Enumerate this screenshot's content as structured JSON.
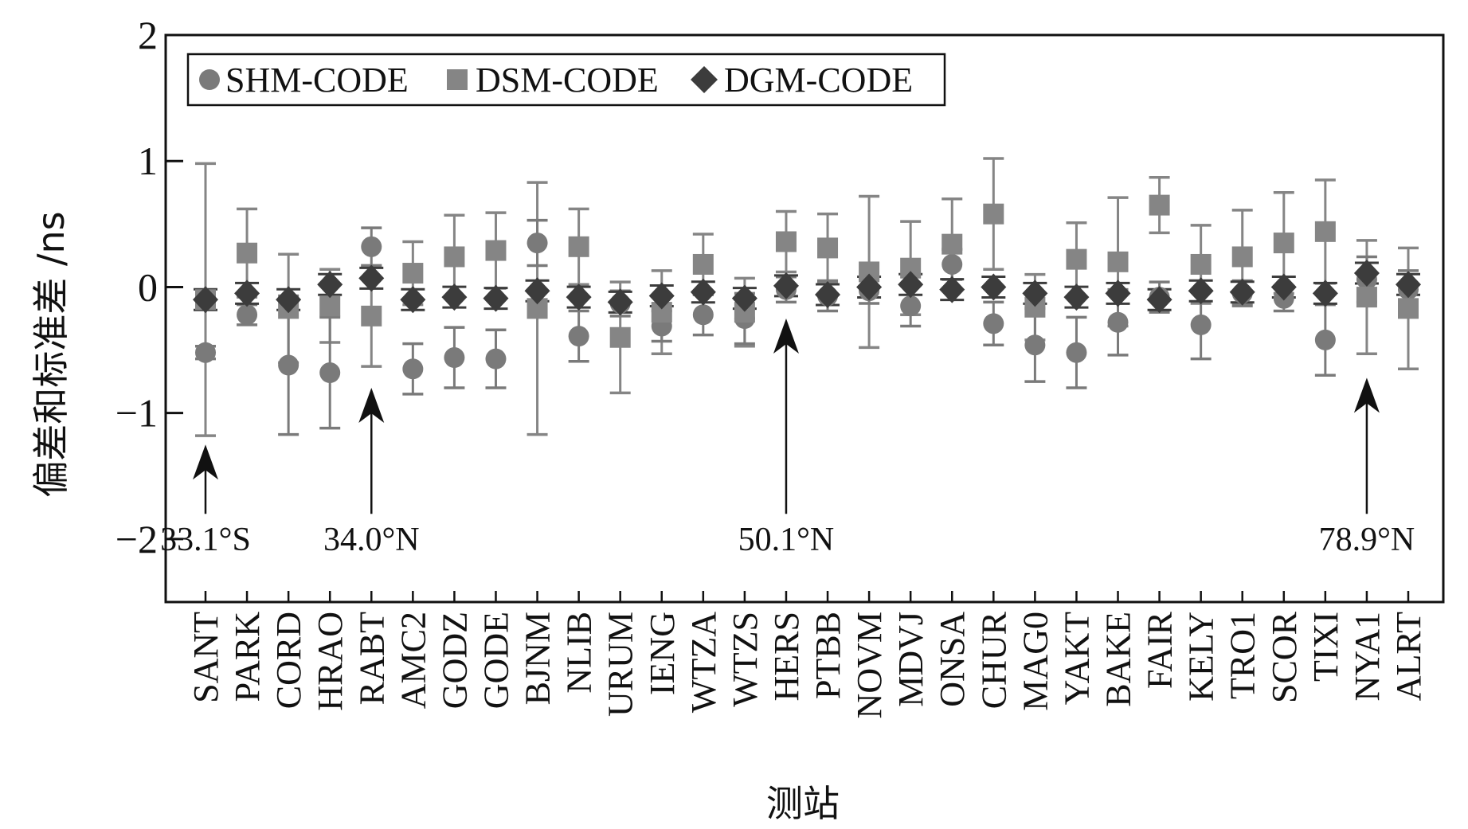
{
  "chart_data": {
    "type": "scatter",
    "xlabel": "测站",
    "ylabel": "偏差和标准差 /ns",
    "ylim": [
      -2.5,
      2
    ],
    "yticks": [
      {
        "value": 2,
        "label": "2"
      },
      {
        "value": 1,
        "label": "1"
      },
      {
        "value": 0,
        "label": "0"
      },
      {
        "value": -1,
        "label": "−1"
      },
      {
        "value": -2,
        "label": "−2"
      }
    ],
    "grid": false,
    "legend_position": "top-left",
    "categories": [
      "SANT",
      "PARK",
      "CORD",
      "HRAO",
      "RABT",
      "AMC2",
      "GODZ",
      "GODE",
      "BJNM",
      "NLIB",
      "URUM",
      "IENG",
      "WTZA",
      "WTZS",
      "HERS",
      "PTBB",
      "NOVM",
      "MDVJ",
      "ONSA",
      "CHUR",
      "MAG0",
      "YAKT",
      "BAKE",
      "FAIR",
      "KELY",
      "TRO1",
      "SCOR",
      "TIXI",
      "NYA1",
      "ALRT"
    ],
    "series": [
      {
        "name": "SHM-CODE",
        "marker": "circle",
        "color": "#7a7a7a",
        "values": [
          -0.52,
          -0.22,
          -0.62,
          -0.68,
          0.32,
          -0.65,
          -0.56,
          -0.57,
          0.35,
          -0.39,
          -0.13,
          -0.31,
          -0.22,
          -0.25,
          -0.02,
          -0.07,
          -0.03,
          -0.15,
          0.18,
          -0.29,
          -0.46,
          -0.52,
          -0.28,
          -0.08,
          -0.3,
          -0.05,
          -0.09,
          -0.42,
          0.06,
          -0.02
        ],
        "std": [
          0.05,
          0.08,
          0.55,
          0.44,
          0.15,
          0.2,
          0.24,
          0.23,
          0.18,
          0.2,
          0.1,
          0.12,
          0.16,
          0.2,
          0.1,
          0.12,
          0.1,
          0.16,
          0.12,
          0.17,
          0.29,
          0.28,
          0.26,
          0.12,
          0.27,
          0.1,
          0.1,
          0.28,
          0.18,
          0.15
        ]
      },
      {
        "name": "DSM-CODE",
        "marker": "square",
        "color": "#858585",
        "values": [
          -0.1,
          0.27,
          -0.17,
          -0.15,
          -0.23,
          0.11,
          0.24,
          0.29,
          -0.17,
          0.32,
          -0.4,
          -0.2,
          0.18,
          -0.2,
          0.36,
          0.31,
          0.12,
          0.15,
          0.34,
          0.58,
          -0.16,
          0.22,
          0.2,
          0.65,
          0.18,
          0.24,
          0.35,
          0.44,
          -0.08,
          -0.17
        ],
        "std": [
          1.08,
          0.35,
          0.43,
          0.29,
          0.4,
          0.25,
          0.33,
          0.3,
          1.0,
          0.3,
          0.44,
          0.33,
          0.24,
          0.27,
          0.24,
          0.27,
          0.6,
          0.37,
          0.36,
          0.44,
          0.26,
          0.29,
          0.51,
          0.22,
          0.31,
          0.37,
          0.4,
          0.41,
          0.45,
          0.48
        ]
      },
      {
        "name": "DGM-CODE",
        "marker": "diamond",
        "color": "#3c3c3c",
        "values": [
          -0.1,
          -0.05,
          -0.1,
          0.02,
          0.07,
          -0.1,
          -0.08,
          -0.09,
          -0.03,
          -0.08,
          -0.12,
          -0.07,
          -0.04,
          -0.09,
          0.01,
          -0.06,
          0.0,
          0.02,
          -0.02,
          0.0,
          -0.05,
          -0.08,
          -0.05,
          -0.1,
          -0.03,
          -0.04,
          0.0,
          -0.05,
          0.11,
          0.02
        ]
      }
    ],
    "annotations": [
      {
        "station": "SANT",
        "label": "33.1°S",
        "arrow_from": -1.8,
        "arrow_to": -1.25
      },
      {
        "station": "RABT",
        "label": "34.0°N",
        "arrow_from": -1.8,
        "arrow_to": -0.8
      },
      {
        "station": "HERS",
        "label": "50.1°N",
        "arrow_from": -1.8,
        "arrow_to": -0.25
      },
      {
        "station": "NYA1",
        "label": "78.9°N",
        "arrow_from": -1.8,
        "arrow_to": -0.72
      }
    ]
  }
}
